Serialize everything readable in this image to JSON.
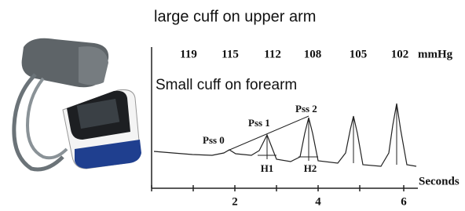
{
  "top_title": "large cuff on upper arm",
  "pressures": {
    "values": [
      119,
      115,
      112,
      108,
      105,
      102
    ],
    "unit": "mmHg"
  },
  "bottom_title": "Small cuff on forearm",
  "annotations": {
    "pss0": "Pss 0",
    "pss1": "Pss 1",
    "pss2": "Pss 2",
    "h1": "H1",
    "h2": "H2"
  },
  "x_axis": {
    "ticks": [
      2,
      4,
      6
    ],
    "label": "Seconds"
  }
}
